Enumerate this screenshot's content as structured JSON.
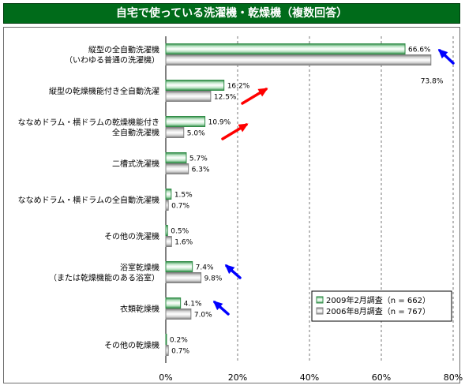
{
  "title": "自宅で使っている洗濯機・乾燥機（複数回答）",
  "chart_data": {
    "type": "bar",
    "orientation": "horizontal",
    "title": "自宅で使っている洗濯機・乾燥機（複数回答）",
    "categories": [
      [
        "縦型の全自動洗濯機",
        "（いわゆる普通の洗濯機）"
      ],
      [
        "縦型の乾燥機能付き全自動洗濯"
      ],
      [
        "ななめドラム・横ドラムの乾燥機能付き",
        "全自動洗濯機"
      ],
      [
        "二槽式洗濯機"
      ],
      [
        "ななめドラム・横ドラムの全自動洗濯機"
      ],
      [
        "その他の洗濯機"
      ],
      [
        "浴室乾燥機",
        "（または乾燥機能のある浴室）"
      ],
      [
        "衣類乾燥機"
      ],
      [
        "その他の乾燥機"
      ]
    ],
    "series": [
      {
        "name": "2009年2月調査（n = 662）",
        "color": "#2e8b45",
        "values": [
          66.6,
          16.2,
          10.9,
          5.7,
          1.5,
          0.5,
          7.4,
          4.1,
          0.2
        ],
        "labels": [
          "66.6%",
          "16.2%",
          "10.9%",
          "5.7%",
          "1.5%",
          "0.5%",
          "7.4%",
          "4.1%",
          "0.2%"
        ]
      },
      {
        "name": "2006年8月調査（n = 767）",
        "color": "#808080",
        "values": [
          73.8,
          12.5,
          5.0,
          6.3,
          0.7,
          1.6,
          9.8,
          7.0,
          0.7
        ],
        "labels": [
          "73.8%",
          "12.5%",
          "5.0%",
          "6.3%",
          "0.7%",
          "1.6%",
          "9.8%",
          "7.0%",
          "0.7%"
        ]
      }
    ],
    "xlim": [
      0,
      80
    ],
    "xticks": [
      0,
      20,
      40,
      60,
      80
    ],
    "xtick_labels": [
      "0%",
      "20%",
      "40%",
      "60%",
      "80%"
    ],
    "grid": "vertical dashed",
    "legend_position": "bottom-right",
    "annotations": [
      {
        "category_index": 0,
        "type": "arrow",
        "direction": "down",
        "color": "#0000ff"
      },
      {
        "category_index": 1,
        "type": "arrow",
        "direction": "up",
        "color": "#ff0000"
      },
      {
        "category_index": 2,
        "type": "arrow",
        "direction": "up",
        "color": "#ff0000"
      },
      {
        "category_index": 6,
        "type": "arrow",
        "direction": "down",
        "color": "#0000ff"
      },
      {
        "category_index": 7,
        "type": "arrow",
        "direction": "down",
        "color": "#0000ff"
      }
    ]
  }
}
